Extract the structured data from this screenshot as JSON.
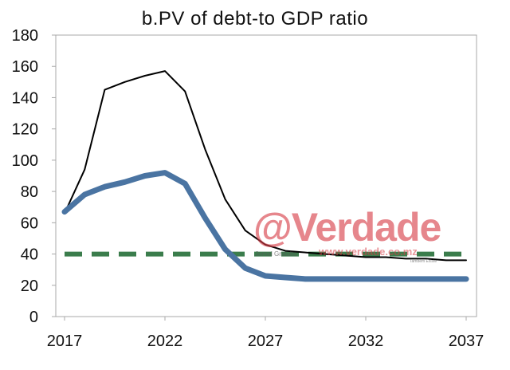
{
  "chart_data": {
    "type": "line",
    "title": "b.PV of debt-to GDP ratio",
    "xlabel": "",
    "ylabel": "",
    "xlim": [
      2017,
      2037
    ],
    "ylim": [
      0,
      180
    ],
    "x_ticks": [
      "2017",
      "2022",
      "2027",
      "2032",
      "2037"
    ],
    "y_ticks": [
      "0",
      "20",
      "40",
      "60",
      "80",
      "100",
      "120",
      "140",
      "160",
      "180"
    ],
    "grid": false,
    "legend": "none",
    "series": [
      {
        "style": "thin-black",
        "color": "#000000",
        "x": [
          2017,
          2018,
          2019,
          2020,
          2021,
          2022,
          2023,
          2024,
          2025,
          2026,
          2027,
          2028,
          2029,
          2030,
          2031,
          2032,
          2033,
          2034,
          2035,
          2036,
          2037
        ],
        "values": [
          66,
          94,
          145,
          150,
          154,
          157,
          144,
          107,
          75,
          55,
          46,
          42,
          41,
          40,
          39,
          38,
          38,
          37,
          37,
          36,
          36
        ]
      },
      {
        "style": "thick-blue",
        "color": "#4a74a2",
        "x": [
          2017,
          2018,
          2019,
          2020,
          2021,
          2022,
          2023,
          2024,
          2025,
          2026,
          2027,
          2028,
          2029,
          2030,
          2031,
          2032,
          2033,
          2034,
          2035,
          2036,
          2037
        ],
        "values": [
          67,
          78,
          83,
          86,
          90,
          92,
          85,
          63,
          43,
          31,
          26,
          25,
          24,
          24,
          24,
          24,
          24,
          24,
          24,
          24,
          24
        ]
      },
      {
        "style": "dashed-green-threshold",
        "color": "#3b7d4c",
        "x": [
          2017,
          2037
        ],
        "values": [
          40,
          40
        ]
      }
    ]
  },
  "watermark": {
    "main": "@Verdade",
    "sub": "Jornal Gratuito",
    "url": "www.verdade.co.mz",
    "tag": "Também Existe"
  }
}
